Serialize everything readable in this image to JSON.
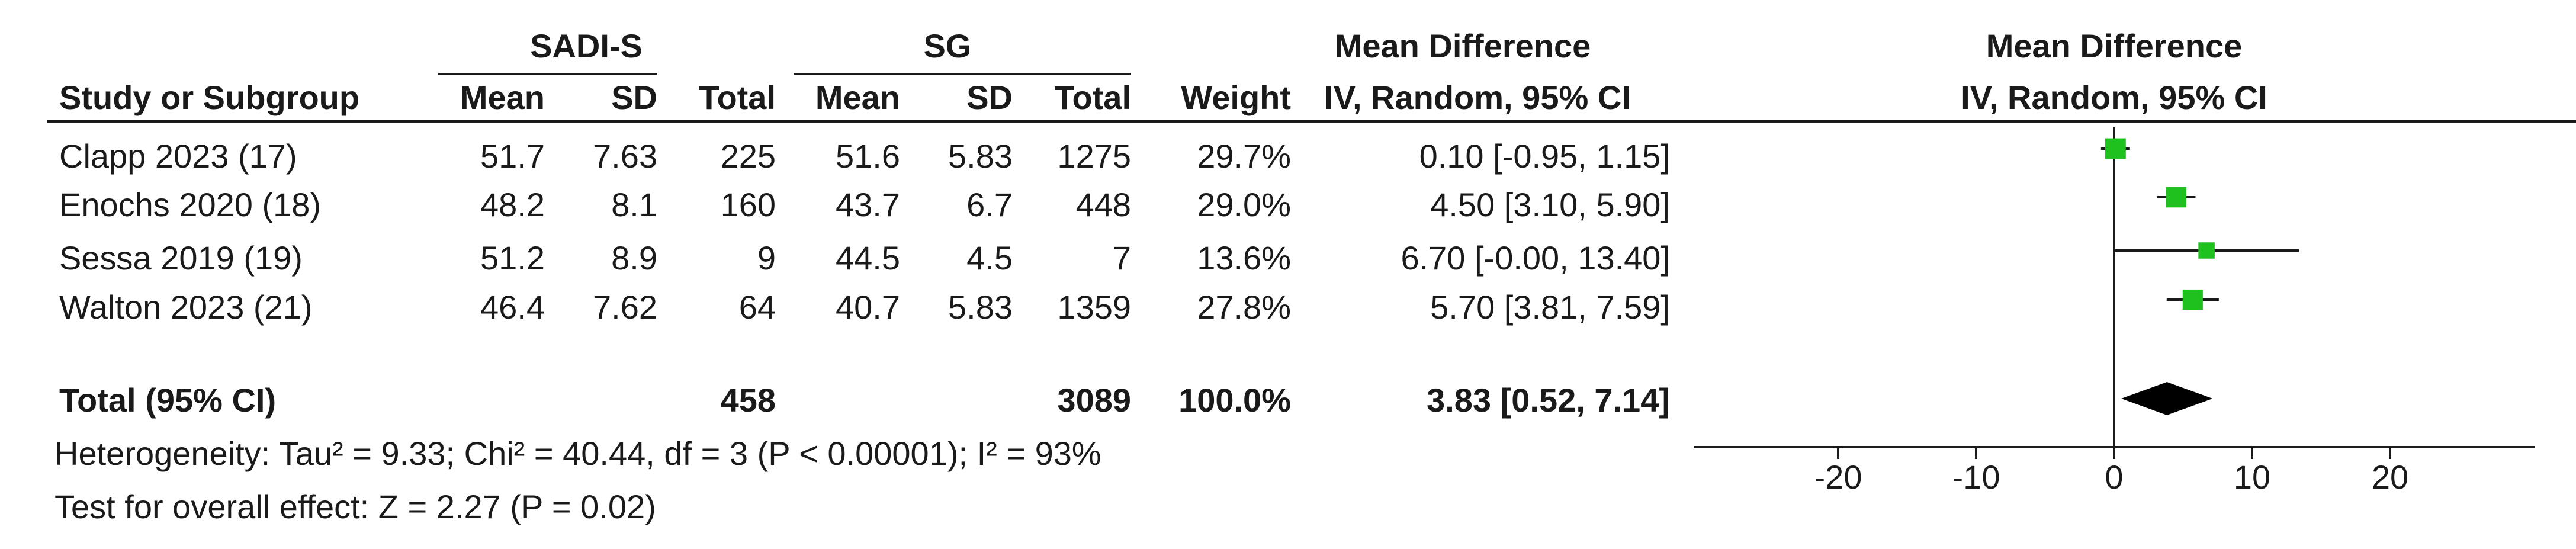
{
  "headers": {
    "group1": "SADI-S",
    "group2": "SG",
    "md_title": "Mean Difference",
    "md_method": "IV, Random, 95% CI",
    "plot_title": "Mean Difference",
    "plot_method": "IV, Random, 95% CI",
    "study_col": "Study or Subgroup",
    "mean": "Mean",
    "sd": "SD",
    "total": "Total",
    "weight": "Weight"
  },
  "studies": [
    {
      "name": "Clapp 2023 (17)",
      "m1": "51.7",
      "sd1": "7.63",
      "n1": "225",
      "m2": "51.6",
      "sd2": "5.83",
      "n2": "1275",
      "weight": "29.7%",
      "ci": "0.10 [-0.95, 1.15]"
    },
    {
      "name": "Enochs 2020 (18)",
      "m1": "48.2",
      "sd1": "8.1",
      "n1": "160",
      "m2": "43.7",
      "sd2": "6.7",
      "n2": "448",
      "weight": "29.0%",
      "ci": "4.50 [3.10, 5.90]"
    },
    {
      "name": "Sessa 2019 (19)",
      "m1": "51.2",
      "sd1": "8.9",
      "n1": "9",
      "m2": "44.5",
      "sd2": "4.5",
      "n2": "7",
      "weight": "13.6%",
      "ci": "6.70 [-0.00, 13.40]"
    },
    {
      "name": "Walton 2023 (21)",
      "m1": "46.4",
      "sd1": "7.62",
      "n1": "64",
      "m2": "40.7",
      "sd2": "5.83",
      "n2": "1359",
      "weight": "27.8%",
      "ci": "5.70 [3.81, 7.59]"
    }
  ],
  "total": {
    "label": "Total (95% CI)",
    "n1": "458",
    "n2": "3089",
    "weight": "100.0%",
    "ci": "3.83 [0.52, 7.14]"
  },
  "heterogeneity": "Heterogeneity: Tau² = 9.33; Chi² = 40.44, df = 3 (P < 0.00001); I² = 93%",
  "overall_effect": "Test for overall effect: Z = 2.27 (P = 0.02)",
  "chart_data": {
    "type": "forest",
    "xlim": [
      -30,
      30
    ],
    "ticks": [
      -20,
      -10,
      0,
      10,
      20
    ],
    "tick_labels": [
      "-20",
      "-10",
      "0",
      "10",
      "20"
    ],
    "null_line": 0,
    "points": [
      {
        "study": "Clapp 2023 (17)",
        "md": 0.1,
        "lo": -0.95,
        "hi": 1.15,
        "weight": 29.7
      },
      {
        "study": "Enochs 2020 (18)",
        "md": 4.5,
        "lo": 3.1,
        "hi": 5.9,
        "weight": 29.0
      },
      {
        "study": "Sessa 2019 (19)",
        "md": 6.7,
        "lo": -0.0,
        "hi": 13.4,
        "weight": 13.6
      },
      {
        "study": "Walton 2023 (21)",
        "md": 5.7,
        "lo": 3.81,
        "hi": 7.59,
        "weight": 27.8
      }
    ],
    "pooled": {
      "md": 3.83,
      "lo": 0.52,
      "hi": 7.14
    },
    "colors": {
      "marker": "#1fc11f",
      "diamond": "#000000",
      "line": "#1a1a1a"
    }
  }
}
